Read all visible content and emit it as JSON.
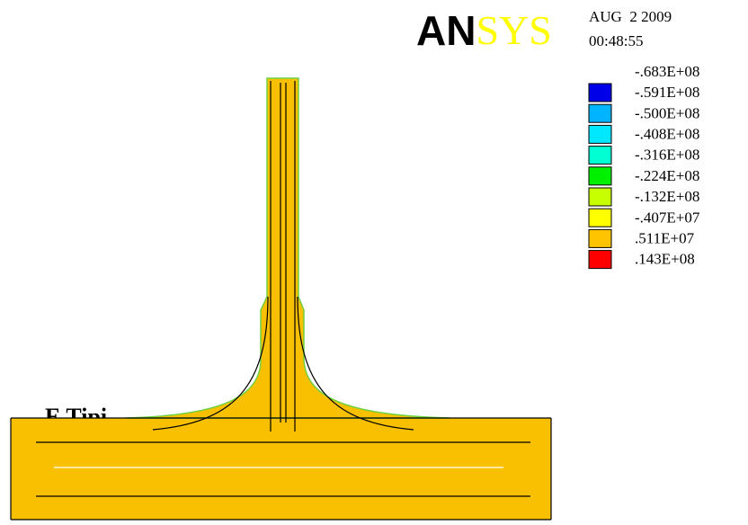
{
  "header": {
    "logo": {
      "dark": "AN",
      "light": "SYS"
    },
    "date": "AUG  2 2009",
    "time": "00:48:55"
  },
  "legend": {
    "labels": [
      "-.683E+08",
      "-.591E+08",
      "-.500E+08",
      "-.408E+08",
      "-.316E+08",
      "-.224E+08",
      "-.132E+08",
      "-.407E+07",
      ".511E+07",
      ".143E+08"
    ],
    "colors": [
      "#0000e8",
      "#00b4ff",
      "#00e8ff",
      "#00ffd2",
      "#00f000",
      "#c8ff00",
      "#ffff00",
      "#ffc400",
      "#ff0000"
    ]
  },
  "caption": "E Tipi"
}
